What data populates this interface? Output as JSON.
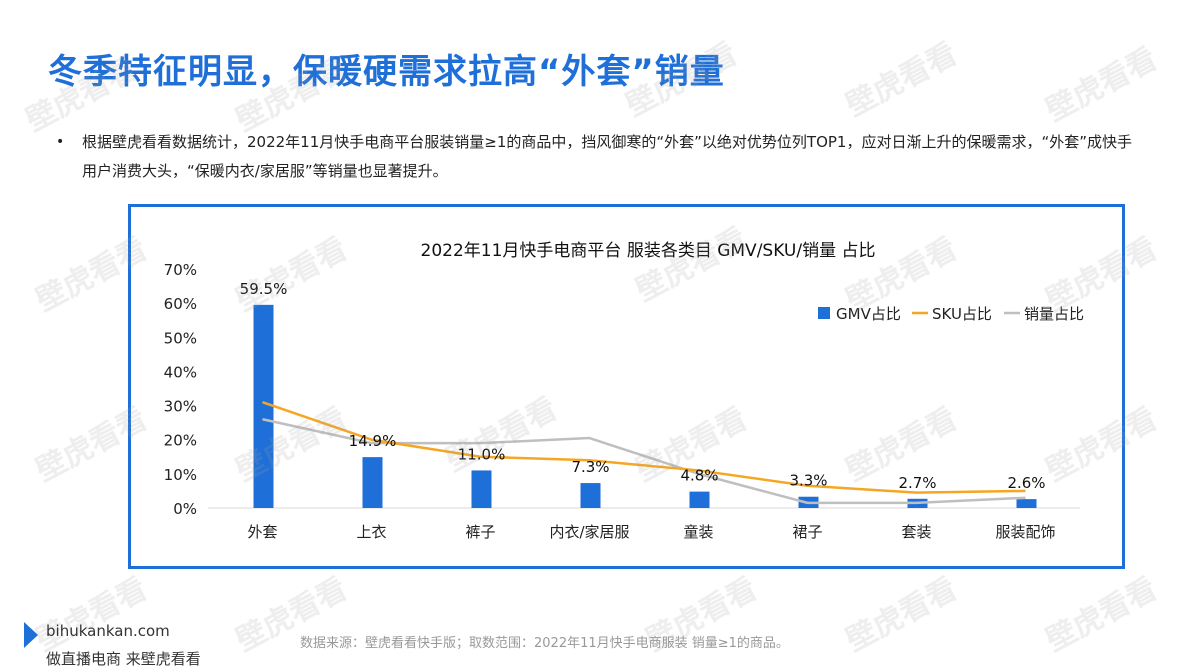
{
  "slide": {
    "title": "冬季特征明显，保暖硬需求拉高“外套”销量",
    "bullet": "根据壁虎看看数据统计，2022年11月快手电商平台服装销量≥1的商品中，挡风御寒的“外套”以绝对优势位列TOP1，应对日渐上升的保暖需求，“外套”成快手用户消费大头，“保暖内衣/家居服”等销量也显著提升。",
    "bullet_icon": "bullet-dot-icon"
  },
  "watermark": "壁虎看看",
  "footer": {
    "logo_icon": "play-triangle-icon",
    "site": "bihukankan.com",
    "slogan": "做直播电商 来壁虎看看",
    "source": "数据来源：壁虎看看快手版；取数范围：2022年11月快手电商服装 销量≥1的商品。"
  },
  "colors": {
    "title": "#1f6fd8",
    "frame": "#1f6fd8",
    "gmv": "#1f6fd8",
    "sku": "#f5a623",
    "sales": "#bfbfbf"
  },
  "chart_data": {
    "type": "bar",
    "title": "2022年11月快手电商平台 服装各类目 GMV/SKU/销量 占比",
    "categories": [
      "外套",
      "上衣",
      "裤子",
      "内衣/家居服",
      "童装",
      "裙子",
      "套装",
      "服装配饰"
    ],
    "yticks": [
      "0%",
      "10%",
      "20%",
      "30%",
      "40%",
      "50%",
      "60%",
      "70%"
    ],
    "ylim": [
      0,
      70
    ],
    "series": [
      {
        "name": "GMV占比",
        "type": "bar",
        "values": [
          59.5,
          14.9,
          11.0,
          7.3,
          4.8,
          3.3,
          2.7,
          2.6
        ],
        "labels": [
          "59.5%",
          "14.9%",
          "11.0%",
          "7.3%",
          "4.8%",
          "3.3%",
          "2.7%",
          "2.6%"
        ]
      },
      {
        "name": "SKU占比",
        "type": "line",
        "values": [
          31,
          20,
          15,
          14,
          11,
          6.5,
          4.5,
          5
        ]
      },
      {
        "name": "销量占比",
        "type": "line",
        "values": [
          26,
          19,
          19,
          20.5,
          10,
          1.5,
          1.5,
          3
        ]
      }
    ],
    "legend": "top-right",
    "grid": false
  }
}
